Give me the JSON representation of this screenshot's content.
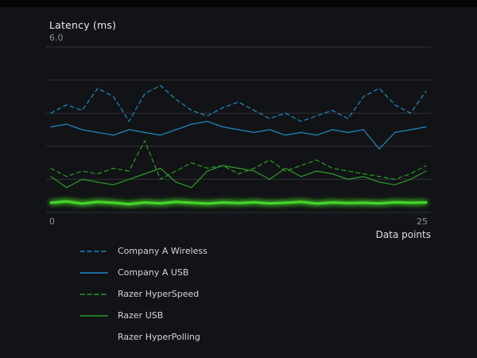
{
  "chart_data": {
    "type": "line",
    "ylabel": "Latency (ms)",
    "xlabel": "Data points",
    "y_max_label": "6.0",
    "x_min_label": "0",
    "x_max_label": "25",
    "ylim": [
      0,
      6.0
    ],
    "xlim": [
      0,
      25
    ],
    "gridlines": [
      0,
      1.2,
      2.4,
      3.6,
      4.8,
      6.0
    ],
    "grid_color": "#303236",
    "legend_position": "bottom-left",
    "series": [
      {
        "name": "Company A Wireless",
        "style": "dashed",
        "color": "#1f8ac0",
        "width": 1.2,
        "glow": false,
        "values": [
          3.6,
          3.9,
          3.7,
          4.5,
          4.2,
          3.3,
          4.3,
          4.6,
          4.1,
          3.7,
          3.5,
          3.8,
          4.0,
          3.7,
          3.4,
          3.6,
          3.3,
          3.5,
          3.7,
          3.4,
          4.2,
          4.5,
          3.9,
          3.6,
          4.4
        ]
      },
      {
        "name": "Company A USB",
        "style": "solid",
        "color": "#1f8ac0",
        "width": 1.2,
        "glow": false,
        "values": [
          3.1,
          3.2,
          3.0,
          2.9,
          2.8,
          3.0,
          2.9,
          2.8,
          3.0,
          3.2,
          3.3,
          3.1,
          3.0,
          2.9,
          3.0,
          2.8,
          2.9,
          2.8,
          3.0,
          2.9,
          3.0,
          2.3,
          2.9,
          3.0,
          3.1
        ]
      },
      {
        "name": "Razer HyperSpeed",
        "style": "dashed",
        "color": "#2b9a2b",
        "width": 1.2,
        "glow": false,
        "values": [
          1.6,
          1.3,
          1.5,
          1.4,
          1.6,
          1.5,
          2.6,
          1.2,
          1.5,
          1.8,
          1.6,
          1.7,
          1.4,
          1.6,
          1.9,
          1.5,
          1.7,
          1.9,
          1.6,
          1.5,
          1.4,
          1.3,
          1.2,
          1.4,
          1.7
        ]
      },
      {
        "name": "Razer USB",
        "style": "solid",
        "color": "#2b9a2b",
        "width": 1.2,
        "glow": false,
        "values": [
          1.3,
          0.9,
          1.2,
          1.1,
          1.0,
          1.2,
          1.4,
          1.6,
          1.1,
          0.9,
          1.5,
          1.7,
          1.6,
          1.5,
          1.2,
          1.6,
          1.3,
          1.5,
          1.4,
          1.2,
          1.3,
          1.1,
          1.0,
          1.2,
          1.5
        ]
      },
      {
        "name": "Razer HyperPolling",
        "style": "solid",
        "color": "#44d62c",
        "width": 3,
        "glow": true,
        "values": [
          0.35,
          0.4,
          0.32,
          0.38,
          0.35,
          0.3,
          0.36,
          0.33,
          0.38,
          0.35,
          0.32,
          0.36,
          0.34,
          0.37,
          0.33,
          0.35,
          0.38,
          0.32,
          0.36,
          0.34,
          0.35,
          0.33,
          0.37,
          0.35,
          0.36
        ]
      }
    ]
  }
}
